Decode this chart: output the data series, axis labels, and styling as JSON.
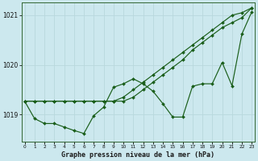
{
  "title": "Graphe pression niveau de la mer (hPa)",
  "bg_color": "#cce8ee",
  "grid_color": "#aacccc",
  "line_color": "#1a5e1a",
  "marker_color": "#1a5e1a",
  "x_ticks": [
    0,
    1,
    2,
    3,
    4,
    5,
    6,
    7,
    8,
    9,
    10,
    11,
    12,
    13,
    14,
    15,
    16,
    17,
    18,
    19,
    20,
    21,
    22,
    23
  ],
  "y_ticks": [
    1019,
    1020,
    1021
  ],
  "ylim": [
    1018.45,
    1021.25
  ],
  "xlim": [
    -0.3,
    23.3
  ],
  "line_straight": [
    1019.27,
    1019.27,
    1019.27,
    1019.27,
    1019.27,
    1019.27,
    1019.27,
    1019.27,
    1019.27,
    1019.27,
    1019.35,
    1019.5,
    1019.65,
    1019.8,
    1019.95,
    1020.1,
    1020.25,
    1020.4,
    1020.55,
    1020.7,
    1020.85,
    1021.0,
    1021.05,
    1021.15
  ],
  "line_smooth": [
    1019.27,
    1019.27,
    1019.27,
    1019.27,
    1019.27,
    1019.27,
    1019.27,
    1019.27,
    1019.27,
    1019.27,
    1019.27,
    1019.35,
    1019.5,
    1019.65,
    1019.8,
    1019.95,
    1020.1,
    1020.3,
    1020.45,
    1020.6,
    1020.75,
    1020.85,
    1020.95,
    1021.15
  ],
  "line_wavy": [
    1019.27,
    1018.92,
    1018.82,
    1018.82,
    1018.75,
    1018.68,
    1018.62,
    1018.98,
    1019.15,
    1019.55,
    1019.62,
    1019.72,
    1019.62,
    1019.47,
    1019.22,
    1018.95,
    1018.95,
    1019.57,
    1019.62,
    1019.62,
    1020.05,
    1019.58,
    1020.62,
    1021.07
  ]
}
